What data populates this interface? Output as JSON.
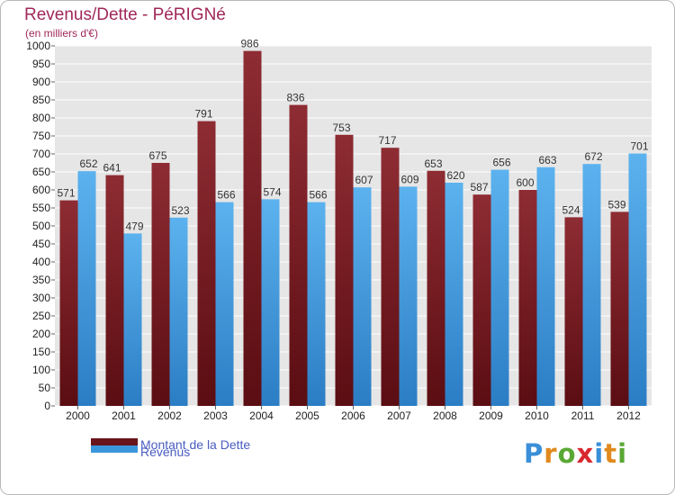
{
  "chart_data": {
    "type": "bar",
    "title": "Revenus/Dette - PéRIGNé",
    "subtitle": "(en milliers d'€)",
    "categories": [
      "2000",
      "2001",
      "2002",
      "2003",
      "2004",
      "2005",
      "2006",
      "2007",
      "2008",
      "2009",
      "2010",
      "2011",
      "2012"
    ],
    "series": [
      {
        "name": "Montant de la Dette",
        "color": "#7a1d26",
        "values": [
          571,
          641,
          675,
          791,
          986,
          836,
          753,
          717,
          653,
          587,
          600,
          524,
          539
        ]
      },
      {
        "name": "Revenus",
        "color": "#3a97dc",
        "values": [
          652,
          479,
          523,
          566,
          574,
          566,
          607,
          609,
          620,
          656,
          663,
          672,
          701
        ]
      }
    ],
    "ylim": [
      0,
      1000
    ],
    "ytick_step": 50,
    "grid": true,
    "legend_position": "bottom-left"
  },
  "brand": {
    "letters": [
      "P",
      "r",
      "o",
      "x",
      "i",
      "t",
      "i"
    ],
    "colors": [
      "#3a8fd8",
      "#e08a1e",
      "#5aa834",
      "#d8282e",
      "#3a8fd8",
      "#e08a1e",
      "#5aa834"
    ]
  }
}
